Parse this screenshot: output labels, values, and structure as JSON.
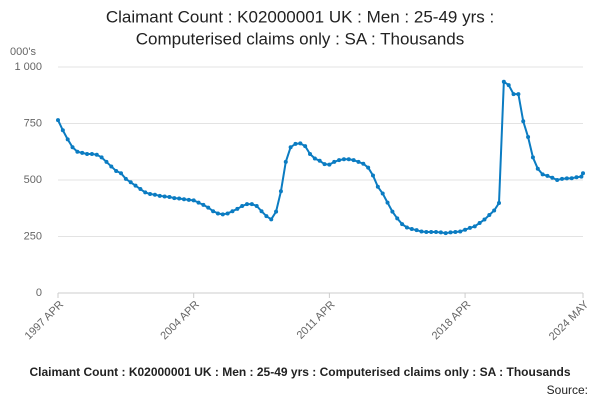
{
  "chart_data": {
    "type": "line",
    "title": [
      "Claimant Count : K02000001 UK : Men : 25-49 yrs :",
      "Computerised claims only : SA : Thousands"
    ],
    "y_unit": "000's",
    "footer": "Claimant Count : K02000001 UK : Men : 25-49 yrs : Computerised claims only : SA : Thousands",
    "source": "Source:",
    "xlim": [
      1997.25,
      2024.333
    ],
    "xticks": [
      {
        "value": 1997.25,
        "label": "1997 APR"
      },
      {
        "value": 2004.25,
        "label": "2004 APR"
      },
      {
        "value": 2011.25,
        "label": "2011 APR"
      },
      {
        "value": 2018.25,
        "label": "2018 APR"
      },
      {
        "value": 2024.333,
        "label": "2024 MAY"
      }
    ],
    "ylim": [
      0,
      1000
    ],
    "yticks": [
      0,
      250,
      500,
      750,
      {
        "value": 1000,
        "label": "1 000"
      }
    ],
    "grid": true,
    "x": [
      1997.25,
      1997.5,
      1997.75,
      1998.0,
      1998.25,
      1998.5,
      1998.75,
      1999.0,
      1999.25,
      1999.5,
      1999.75,
      2000.0,
      2000.25,
      2000.5,
      2000.75,
      2001.0,
      2001.25,
      2001.5,
      2001.75,
      2002.0,
      2002.25,
      2002.5,
      2002.75,
      2003.0,
      2003.25,
      2003.5,
      2003.75,
      2004.0,
      2004.25,
      2004.5,
      2004.75,
      2005.0,
      2005.25,
      2005.5,
      2005.75,
      2006.0,
      2006.25,
      2006.5,
      2006.75,
      2007.0,
      2007.25,
      2007.5,
      2007.75,
      2008.0,
      2008.25,
      2008.5,
      2008.75,
      2009.0,
      2009.25,
      2009.5,
      2009.75,
      2010.0,
      2010.25,
      2010.5,
      2010.75,
      2011.0,
      2011.25,
      2011.5,
      2011.75,
      2012.0,
      2012.25,
      2012.5,
      2012.75,
      2013.0,
      2013.25,
      2013.5,
      2013.75,
      2014.0,
      2014.25,
      2014.5,
      2014.75,
      2015.0,
      2015.25,
      2015.5,
      2015.75,
      2016.0,
      2016.25,
      2016.5,
      2016.75,
      2017.0,
      2017.25,
      2017.5,
      2017.75,
      2018.0,
      2018.25,
      2018.5,
      2018.75,
      2019.0,
      2019.25,
      2019.5,
      2019.75,
      2020.0,
      2020.25,
      2020.5,
      2020.75,
      2021.0,
      2021.25,
      2021.5,
      2021.75,
      2022.0,
      2022.25,
      2022.5,
      2022.75,
      2023.0,
      2023.25,
      2023.5,
      2023.75,
      2024.0,
      2024.25,
      2024.333
    ],
    "series": [
      {
        "color": "#0b7cc2",
        "values": [
          765,
          720,
          680,
          645,
          625,
          620,
          615,
          615,
          612,
          600,
          580,
          560,
          540,
          530,
          505,
          490,
          475,
          460,
          445,
          438,
          435,
          430,
          427,
          425,
          420,
          418,
          415,
          412,
          410,
          400,
          390,
          378,
          362,
          352,
          348,
          352,
          362,
          372,
          385,
          393,
          393,
          385,
          362,
          340,
          326,
          360,
          450,
          580,
          645,
          660,
          662,
          650,
          615,
          595,
          585,
          570,
          568,
          580,
          588,
          592,
          592,
          588,
          580,
          572,
          555,
          520,
          470,
          440,
          400,
          360,
          330,
          305,
          290,
          283,
          278,
          272,
          270,
          270,
          270,
          268,
          265,
          268,
          270,
          272,
          280,
          288,
          295,
          310,
          325,
          345,
          365,
          398,
          935,
          920,
          880,
          880,
          760,
          690,
          600,
          550,
          525,
          518,
          510,
          500,
          505,
          507,
          508,
          512,
          515,
          530
        ]
      }
    ]
  }
}
